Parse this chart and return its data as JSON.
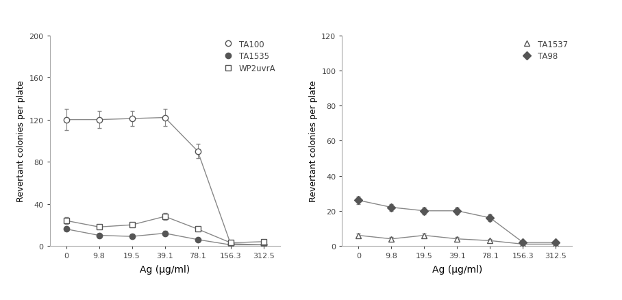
{
  "x_labels": [
    "0",
    "9.8",
    "19.5",
    "39.1",
    "78.1",
    "156.3",
    "312.5"
  ],
  "x_positions": [
    0,
    1,
    2,
    3,
    4,
    5,
    6
  ],
  "left_plot": {
    "ylabel": "Revertant colonies per plate",
    "xlabel": "Ag (μg/ml)",
    "ylim": [
      0,
      200
    ],
    "yticks": [
      0,
      40,
      80,
      120,
      160,
      200
    ],
    "series": [
      {
        "label": "TA100",
        "values": [
          120,
          120,
          121,
          122,
          90,
          2,
          1
        ],
        "yerr": [
          10,
          8,
          7,
          8,
          7,
          1,
          0.5
        ],
        "marker": "o",
        "markerfacecolor": "white",
        "markeredgecolor": "#555555",
        "color": "#888888",
        "markersize": 6,
        "linewidth": 1.0
      },
      {
        "label": "TA1535",
        "values": [
          16,
          10,
          9,
          12,
          6,
          1,
          1
        ],
        "yerr": [
          2,
          2,
          2,
          2,
          1,
          0.5,
          0.5
        ],
        "marker": "o",
        "markerfacecolor": "#555555",
        "markeredgecolor": "#555555",
        "color": "#888888",
        "markersize": 6,
        "linewidth": 1.0
      },
      {
        "label": "WP2uvrA",
        "values": [
          24,
          18,
          20,
          28,
          16,
          3,
          4
        ],
        "yerr": [
          3,
          2,
          2,
          3,
          2,
          1,
          1
        ],
        "marker": "s",
        "markerfacecolor": "white",
        "markeredgecolor": "#555555",
        "color": "#888888",
        "markersize": 6,
        "linewidth": 1.0
      }
    ]
  },
  "right_plot": {
    "ylabel": "Revertant colonies per plate",
    "xlabel": "Ag (μg/ml)",
    "ylim": [
      0,
      120
    ],
    "yticks": [
      0,
      20,
      40,
      60,
      80,
      100,
      120
    ],
    "series": [
      {
        "label": "TA1537",
        "values": [
          6,
          4,
          6,
          4,
          3,
          1,
          1
        ],
        "yerr": [
          1,
          1,
          1,
          1,
          1,
          0.5,
          0.5
        ],
        "marker": "^",
        "markerfacecolor": "white",
        "markeredgecolor": "#555555",
        "color": "#888888",
        "markersize": 6,
        "linewidth": 1.0
      },
      {
        "label": "TA98",
        "values": [
          26,
          22,
          20,
          20,
          16,
          2,
          2
        ],
        "yerr": [
          2,
          2,
          2,
          2,
          2,
          1,
          1
        ],
        "marker": "D",
        "markerfacecolor": "#555555",
        "markeredgecolor": "#555555",
        "color": "#888888",
        "markersize": 6,
        "linewidth": 1.0
      }
    ]
  },
  "background_color": "#ffffff",
  "spine_color": "#aaaaaa",
  "tick_color": "#444444",
  "label_fontsize": 9,
  "tick_fontsize": 8,
  "legend_fontsize": 8.5
}
